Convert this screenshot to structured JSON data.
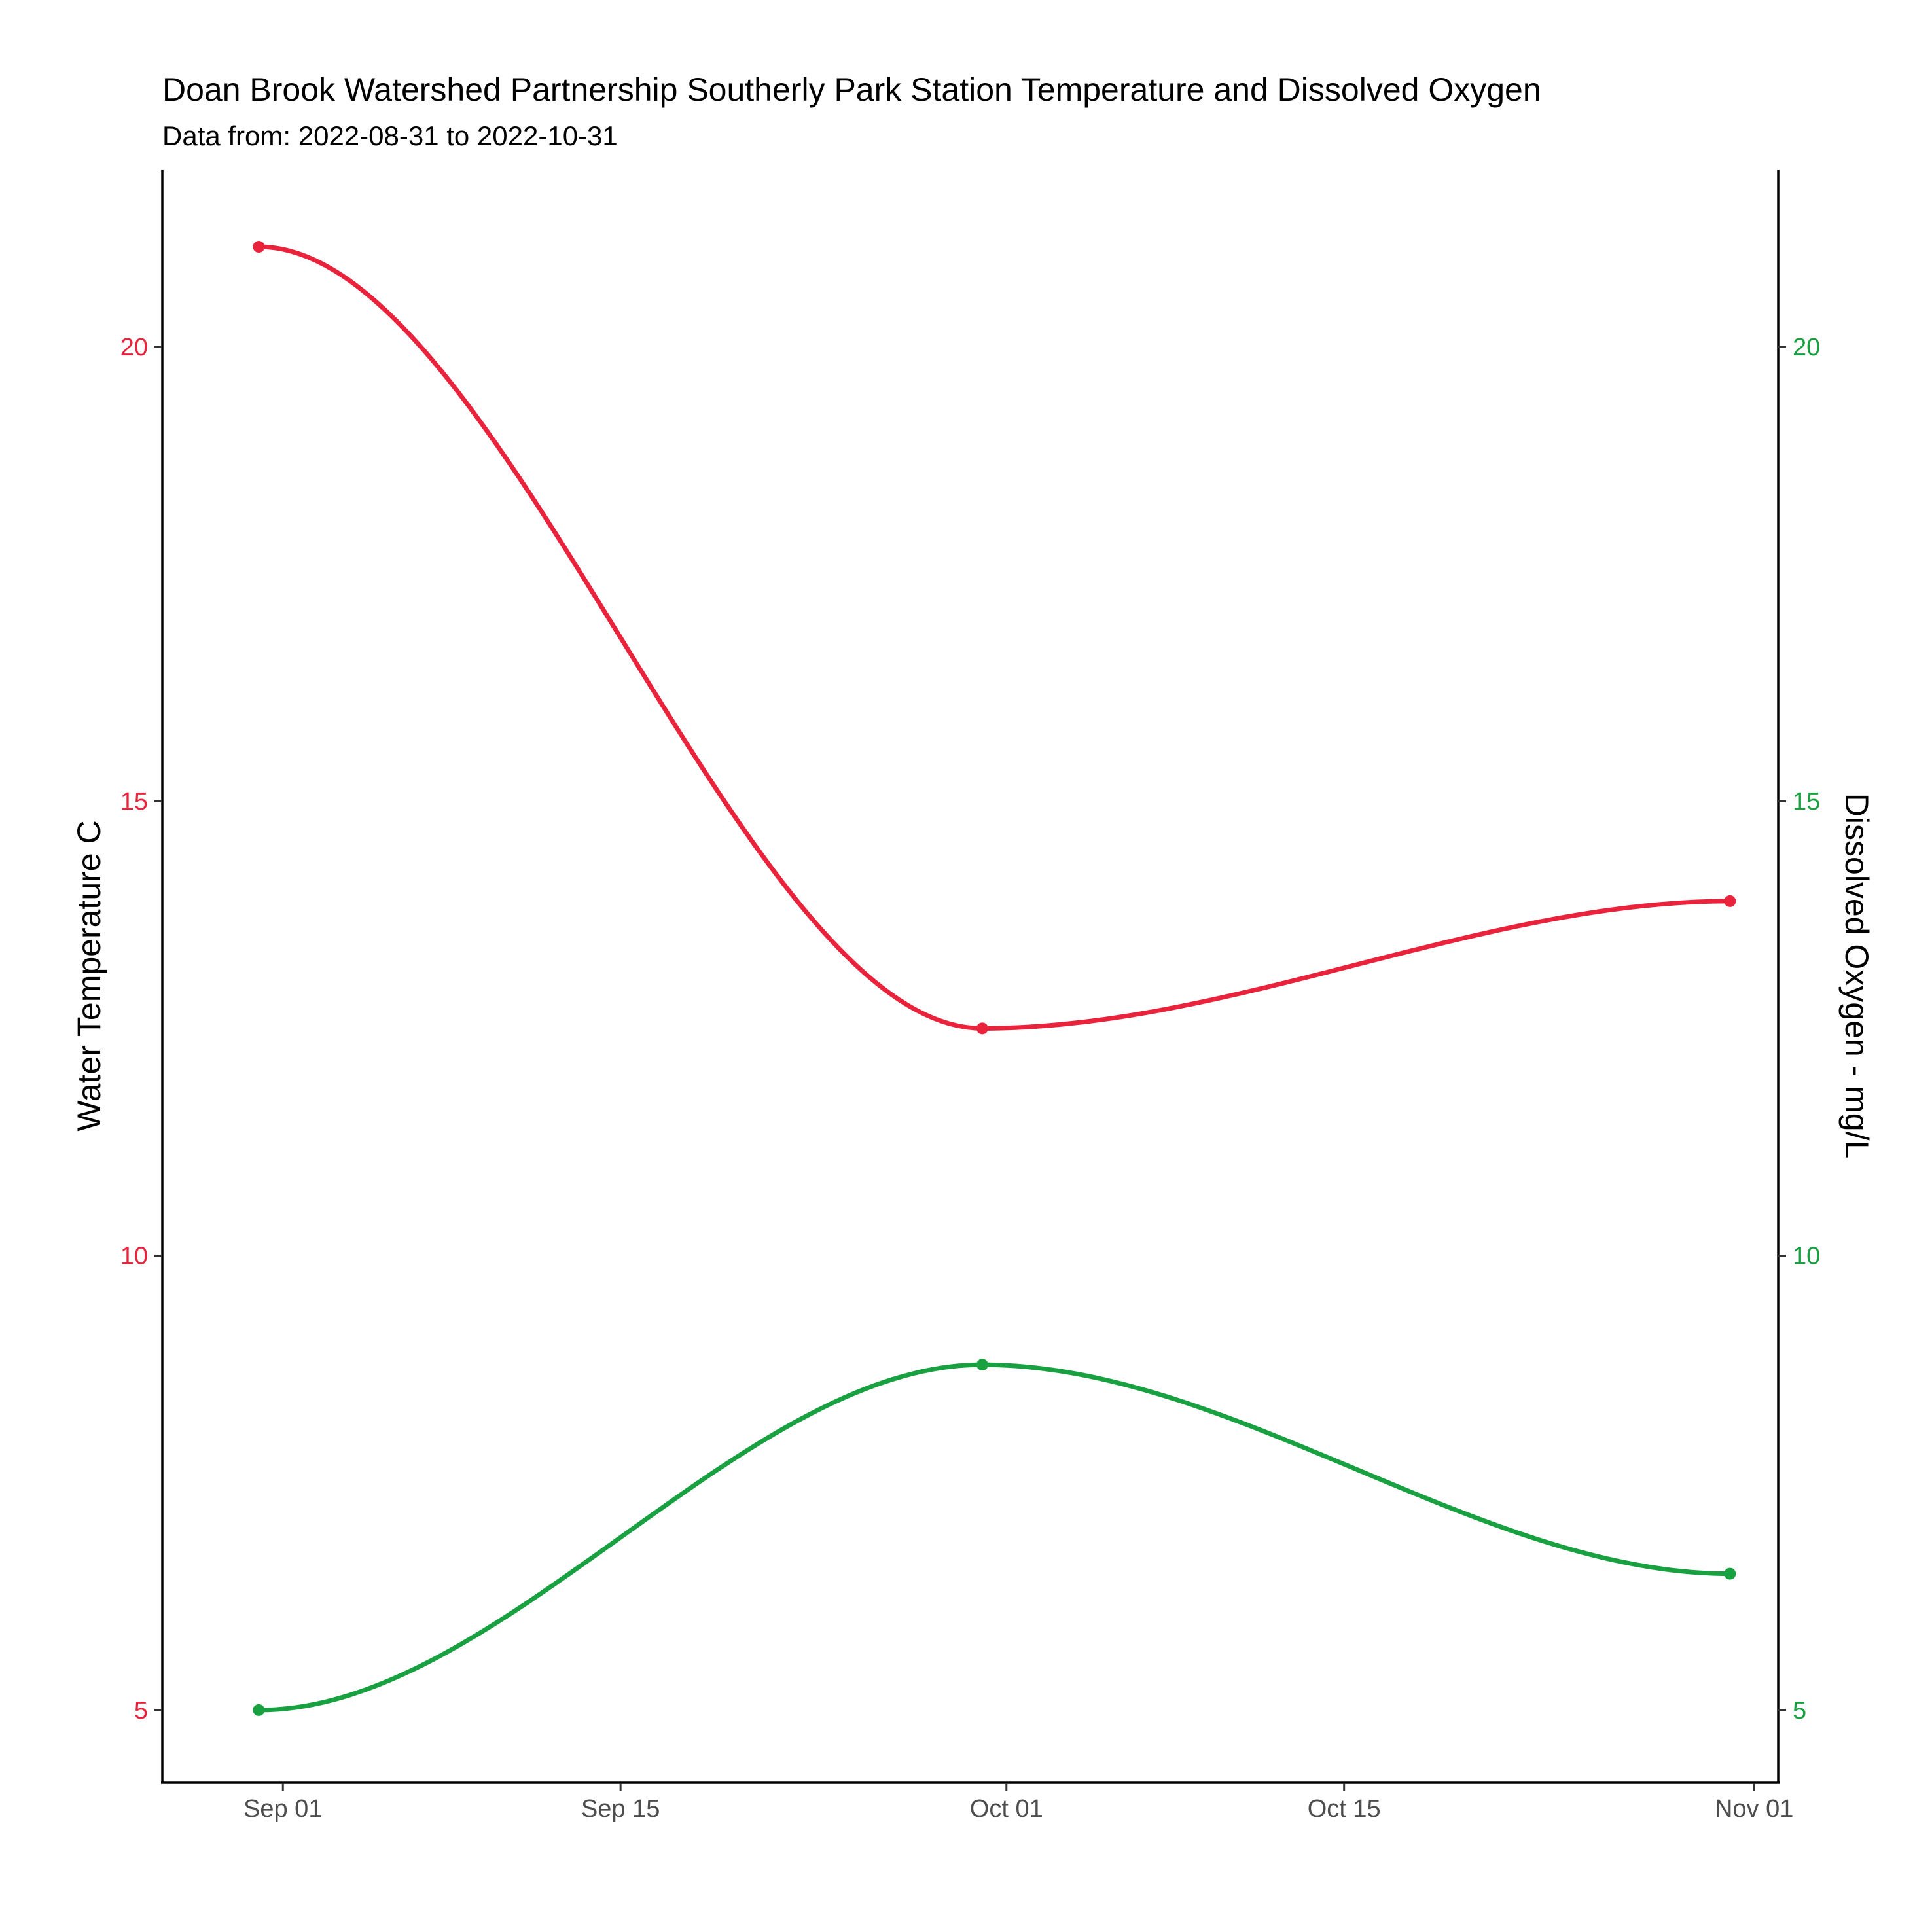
{
  "chart_data": {
    "type": "line",
    "title": "Doan Brook Watershed Partnership Southerly Park Station Temperature and Dissolved Oxygen",
    "subtitle": "Data from: 2022-08-31 to 2022-10-31",
    "x_axis": {
      "type": "date",
      "range": [
        "2022-08-27",
        "2022-11-02"
      ],
      "ticks": [
        {
          "date": "2022-09-01",
          "label": "Sep 01"
        },
        {
          "date": "2022-09-15",
          "label": "Sep 15"
        },
        {
          "date": "2022-10-01",
          "label": "Oct 01"
        },
        {
          "date": "2022-10-15",
          "label": "Oct 15"
        },
        {
          "date": "2022-11-01",
          "label": "Nov 01"
        }
      ]
    },
    "y_axis_left": {
      "label": "Water Temperature C",
      "ylim": [
        4.2,
        21.95
      ],
      "ticks": [
        5,
        10,
        15,
        20
      ],
      "color": "#e8233b"
    },
    "y_axis_right": {
      "label": "Dissolved Oxygen - mg/L",
      "ylim": [
        4.2,
        21.95
      ],
      "ticks": [
        5,
        10,
        15,
        20
      ],
      "color": "#18a041"
    },
    "grid": false,
    "legend": "none",
    "smoothed": true,
    "series": [
      {
        "axis": "left",
        "color": "#e8233b",
        "points": [
          {
            "x": "2022-08-31",
            "y": 21.1
          },
          {
            "x": "2022-09-30",
            "y": 12.5
          },
          {
            "x": "2022-10-31",
            "y": 13.9
          }
        ]
      },
      {
        "axis": "right",
        "color": "#18a041",
        "points": [
          {
            "x": "2022-08-31",
            "y": 5.0
          },
          {
            "x": "2022-09-30",
            "y": 8.8
          },
          {
            "x": "2022-10-31",
            "y": 6.5
          }
        ]
      }
    ]
  }
}
